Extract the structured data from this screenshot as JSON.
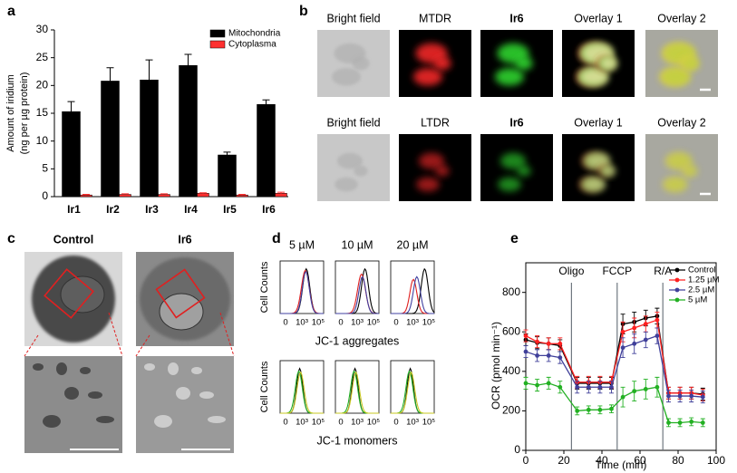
{
  "panel_labels": [
    "a",
    "b",
    "c",
    "d",
    "e"
  ],
  "panel_b": {
    "rows": [
      [
        "Bright field",
        "MTDR",
        "Ir6",
        "Overlay 1",
        "Overlay 2"
      ],
      [
        "Bright field",
        "LTDR",
        "Ir6",
        "Overlay 1",
        "Overlay 2"
      ]
    ]
  },
  "panel_c": {
    "columns": [
      "Control",
      "Ir6"
    ]
  },
  "panel_d": {
    "concentrations": [
      "5 µM",
      "10 µM",
      "20 µM"
    ],
    "y_label": "Cell Counts",
    "x_ticks": [
      "0",
      "10³",
      "10⁵"
    ],
    "x_labels": [
      "JC-1 aggregates",
      "JC-1 monomers"
    ]
  },
  "chart_data": [
    {
      "type": "bar",
      "y_label": [
        "Amount of iridium",
        "(ng per µg protein)"
      ],
      "categories": [
        "Ir1",
        "Ir2",
        "Ir3",
        "Ir4",
        "Ir5",
        "Ir6"
      ],
      "series": [
        {
          "name": "Mitochondria",
          "color": "#000000",
          "values": [
            15.3,
            20.8,
            21.0,
            23.6,
            7.5,
            16.6
          ],
          "errors": [
            1.8,
            2.4,
            3.6,
            2.0,
            0.5,
            0.8
          ]
        },
        {
          "name": "Cytoplasma",
          "color": "#ff3030",
          "values": [
            0.3,
            0.4,
            0.4,
            0.6,
            0.3,
            0.6
          ],
          "errors": [
            0.1,
            0.1,
            0.1,
            0.1,
            0.1,
            0.2
          ]
        }
      ],
      "ylim": [
        0,
        30
      ],
      "yticks": [
        0,
        5,
        10,
        15,
        20,
        25,
        30
      ],
      "legend": "upper right"
    },
    {
      "type": "line",
      "x_label": "Time (min)",
      "y_label": "OCR (pmol min⁻¹)",
      "x": [
        0,
        6,
        12,
        18,
        27,
        33,
        39,
        45,
        51,
        57,
        63,
        69,
        75,
        81,
        87,
        93
      ],
      "series": [
        {
          "name": "Control",
          "color": "#000000",
          "values": [
            560,
            545,
            540,
            530,
            340,
            340,
            340,
            340,
            640,
            650,
            670,
            680,
            290,
            290,
            290,
            285
          ],
          "errors": [
            30,
            30,
            30,
            30,
            30,
            30,
            30,
            30,
            50,
            50,
            40,
            40,
            30,
            30,
            30,
            30
          ]
        },
        {
          "name": "1.25 µM",
          "color": "#ff2020",
          "values": [
            580,
            550,
            540,
            540,
            345,
            345,
            345,
            345,
            600,
            620,
            640,
            660,
            290,
            290,
            290,
            280
          ],
          "errors": [
            30,
            30,
            30,
            30,
            30,
            30,
            30,
            30,
            50,
            50,
            40,
            40,
            30,
            30,
            30,
            30
          ]
        },
        {
          "name": "2.5 µM",
          "color": "#40409a",
          "values": [
            500,
            480,
            480,
            470,
            320,
            320,
            320,
            320,
            520,
            540,
            560,
            580,
            275,
            275,
            275,
            270
          ],
          "errors": [
            30,
            30,
            30,
            30,
            30,
            30,
            30,
            30,
            50,
            50,
            40,
            40,
            30,
            30,
            30,
            30
          ]
        },
        {
          "name": "5 µM",
          "color": "#22b022",
          "values": [
            340,
            330,
            340,
            320,
            200,
            205,
            205,
            210,
            270,
            300,
            310,
            320,
            140,
            140,
            145,
            140
          ],
          "errors": [
            30,
            30,
            30,
            30,
            20,
            20,
            20,
            20,
            50,
            50,
            50,
            50,
            20,
            20,
            20,
            20
          ]
        }
      ],
      "annotations": [
        {
          "text": "Oligo",
          "x": 24
        },
        {
          "text": "FCCP",
          "x": 48
        },
        {
          "text": "R/A",
          "x": 72
        }
      ],
      "xlim": [
        0,
        100
      ],
      "xticks": [
        0,
        20,
        40,
        60,
        80,
        100
      ],
      "ylim": [
        0,
        950
      ],
      "yticks": [
        0,
        200,
        400,
        600,
        800
      ],
      "legend": "upper right"
    }
  ]
}
